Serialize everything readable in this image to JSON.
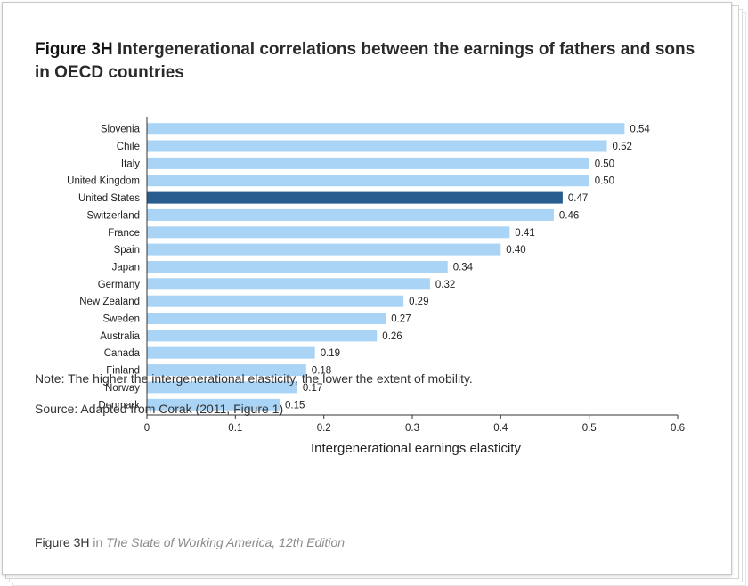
{
  "figure": {
    "number": "Figure 3H",
    "title": "Intergenerational correlations between the earnings of fathers and sons in OECD countries"
  },
  "notes": {
    "note": "Note: The higher the intergenerational elasticity, the lower the extent of mobility.",
    "source": "Source: Adapted from Corak (2011, Figure 1)"
  },
  "caption": {
    "figure_ref": "Figure 3H",
    "in_word": "in",
    "book_title": "The State of Working America, 12th Edition"
  },
  "colors": {
    "bar": "#a9d4f5",
    "highlight": "#2a5d8f",
    "axis": "#333333"
  },
  "chart_data": {
    "type": "bar",
    "orientation": "horizontal",
    "categories": [
      "Slovenia",
      "Chile",
      "Italy",
      "United Kingdom",
      "United States",
      "Switzerland",
      "France",
      "Spain",
      "Japan",
      "Germany",
      "New Zealand",
      "Sweden",
      "Australia",
      "Canada",
      "Finland",
      "Norway",
      "Denmark"
    ],
    "values": [
      0.54,
      0.52,
      0.5,
      0.5,
      0.47,
      0.46,
      0.41,
      0.4,
      0.34,
      0.32,
      0.29,
      0.27,
      0.26,
      0.19,
      0.18,
      0.17,
      0.15
    ],
    "value_labels": [
      "0.54",
      "0.52",
      "0.50",
      "0.50",
      "0.47",
      "0.46",
      "0.41",
      "0.40",
      "0.34",
      "0.32",
      "0.29",
      "0.27",
      "0.26",
      "0.19",
      "0.18",
      "0.17",
      "0.15"
    ],
    "highlight_category": "United States",
    "xlabel": "Intergenerational earnings elasticity",
    "xlim": [
      0,
      0.6
    ],
    "xticks": [
      0,
      0.1,
      0.2,
      0.3,
      0.4,
      0.5,
      0.6
    ],
    "xtick_labels": [
      "0",
      "0.1",
      "0.2",
      "0.3",
      "0.4",
      "0.5",
      "0.6"
    ],
    "grid": false,
    "legend": "none"
  }
}
